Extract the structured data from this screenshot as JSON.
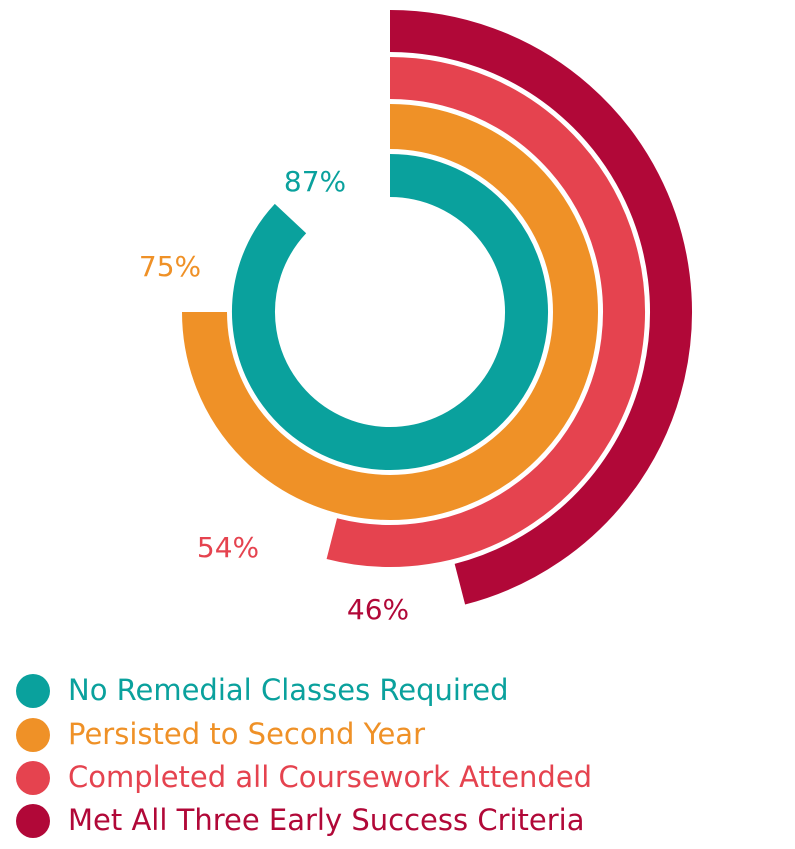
{
  "chart_data": {
    "type": "radial_bar",
    "categories": [
      "No Remedial Classes Required",
      "Persisted to Second Year",
      "Completed all Coursework Attended",
      "Met All Three Early Success Criteria"
    ],
    "values": [
      87,
      75,
      54,
      46
    ],
    "value_labels": [
      "87%",
      "75%",
      "54%",
      "46%"
    ],
    "colors": [
      "#0aa19d",
      "#ef9127",
      "#e5434f",
      "#b10838"
    ],
    "ylim": [
      0,
      100
    ]
  }
}
